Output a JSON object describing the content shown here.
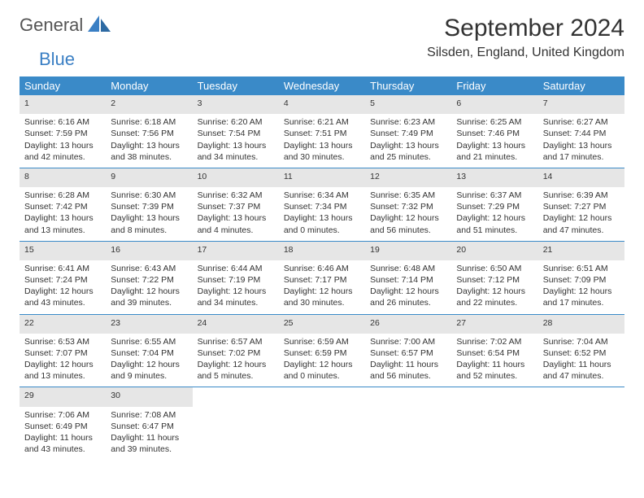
{
  "brand": {
    "part1": "General",
    "part2": "Blue"
  },
  "title": "September 2024",
  "location": "Silsden, England, United Kingdom",
  "colors": {
    "header_bg": "#3a8ac8",
    "header_text": "#ffffff",
    "daynum_bg": "#e6e6e6",
    "divider": "#3a8ac8",
    "brand_blue": "#3a7fc4",
    "text": "#333333"
  },
  "daysOfWeek": [
    "Sunday",
    "Monday",
    "Tuesday",
    "Wednesday",
    "Thursday",
    "Friday",
    "Saturday"
  ],
  "calendar": {
    "type": "table",
    "columns": 7,
    "rows": 5,
    "cell_fontsize": 10.5,
    "header_fontsize": 13
  },
  "cells": [
    {
      "day": "1",
      "sunrise": "Sunrise: 6:16 AM",
      "sunset": "Sunset: 7:59 PM",
      "daylight": "Daylight: 13 hours and 42 minutes."
    },
    {
      "day": "2",
      "sunrise": "Sunrise: 6:18 AM",
      "sunset": "Sunset: 7:56 PM",
      "daylight": "Daylight: 13 hours and 38 minutes."
    },
    {
      "day": "3",
      "sunrise": "Sunrise: 6:20 AM",
      "sunset": "Sunset: 7:54 PM",
      "daylight": "Daylight: 13 hours and 34 minutes."
    },
    {
      "day": "4",
      "sunrise": "Sunrise: 6:21 AM",
      "sunset": "Sunset: 7:51 PM",
      "daylight": "Daylight: 13 hours and 30 minutes."
    },
    {
      "day": "5",
      "sunrise": "Sunrise: 6:23 AM",
      "sunset": "Sunset: 7:49 PM",
      "daylight": "Daylight: 13 hours and 25 minutes."
    },
    {
      "day": "6",
      "sunrise": "Sunrise: 6:25 AM",
      "sunset": "Sunset: 7:46 PM",
      "daylight": "Daylight: 13 hours and 21 minutes."
    },
    {
      "day": "7",
      "sunrise": "Sunrise: 6:27 AM",
      "sunset": "Sunset: 7:44 PM",
      "daylight": "Daylight: 13 hours and 17 minutes."
    },
    {
      "day": "8",
      "sunrise": "Sunrise: 6:28 AM",
      "sunset": "Sunset: 7:42 PM",
      "daylight": "Daylight: 13 hours and 13 minutes."
    },
    {
      "day": "9",
      "sunrise": "Sunrise: 6:30 AM",
      "sunset": "Sunset: 7:39 PM",
      "daylight": "Daylight: 13 hours and 8 minutes."
    },
    {
      "day": "10",
      "sunrise": "Sunrise: 6:32 AM",
      "sunset": "Sunset: 7:37 PM",
      "daylight": "Daylight: 13 hours and 4 minutes."
    },
    {
      "day": "11",
      "sunrise": "Sunrise: 6:34 AM",
      "sunset": "Sunset: 7:34 PM",
      "daylight": "Daylight: 13 hours and 0 minutes."
    },
    {
      "day": "12",
      "sunrise": "Sunrise: 6:35 AM",
      "sunset": "Sunset: 7:32 PM",
      "daylight": "Daylight: 12 hours and 56 minutes."
    },
    {
      "day": "13",
      "sunrise": "Sunrise: 6:37 AM",
      "sunset": "Sunset: 7:29 PM",
      "daylight": "Daylight: 12 hours and 51 minutes."
    },
    {
      "day": "14",
      "sunrise": "Sunrise: 6:39 AM",
      "sunset": "Sunset: 7:27 PM",
      "daylight": "Daylight: 12 hours and 47 minutes."
    },
    {
      "day": "15",
      "sunrise": "Sunrise: 6:41 AM",
      "sunset": "Sunset: 7:24 PM",
      "daylight": "Daylight: 12 hours and 43 minutes."
    },
    {
      "day": "16",
      "sunrise": "Sunrise: 6:43 AM",
      "sunset": "Sunset: 7:22 PM",
      "daylight": "Daylight: 12 hours and 39 minutes."
    },
    {
      "day": "17",
      "sunrise": "Sunrise: 6:44 AM",
      "sunset": "Sunset: 7:19 PM",
      "daylight": "Daylight: 12 hours and 34 minutes."
    },
    {
      "day": "18",
      "sunrise": "Sunrise: 6:46 AM",
      "sunset": "Sunset: 7:17 PM",
      "daylight": "Daylight: 12 hours and 30 minutes."
    },
    {
      "day": "19",
      "sunrise": "Sunrise: 6:48 AM",
      "sunset": "Sunset: 7:14 PM",
      "daylight": "Daylight: 12 hours and 26 minutes."
    },
    {
      "day": "20",
      "sunrise": "Sunrise: 6:50 AM",
      "sunset": "Sunset: 7:12 PM",
      "daylight": "Daylight: 12 hours and 22 minutes."
    },
    {
      "day": "21",
      "sunrise": "Sunrise: 6:51 AM",
      "sunset": "Sunset: 7:09 PM",
      "daylight": "Daylight: 12 hours and 17 minutes."
    },
    {
      "day": "22",
      "sunrise": "Sunrise: 6:53 AM",
      "sunset": "Sunset: 7:07 PM",
      "daylight": "Daylight: 12 hours and 13 minutes."
    },
    {
      "day": "23",
      "sunrise": "Sunrise: 6:55 AM",
      "sunset": "Sunset: 7:04 PM",
      "daylight": "Daylight: 12 hours and 9 minutes."
    },
    {
      "day": "24",
      "sunrise": "Sunrise: 6:57 AM",
      "sunset": "Sunset: 7:02 PM",
      "daylight": "Daylight: 12 hours and 5 minutes."
    },
    {
      "day": "25",
      "sunrise": "Sunrise: 6:59 AM",
      "sunset": "Sunset: 6:59 PM",
      "daylight": "Daylight: 12 hours and 0 minutes."
    },
    {
      "day": "26",
      "sunrise": "Sunrise: 7:00 AM",
      "sunset": "Sunset: 6:57 PM",
      "daylight": "Daylight: 11 hours and 56 minutes."
    },
    {
      "day": "27",
      "sunrise": "Sunrise: 7:02 AM",
      "sunset": "Sunset: 6:54 PM",
      "daylight": "Daylight: 11 hours and 52 minutes."
    },
    {
      "day": "28",
      "sunrise": "Sunrise: 7:04 AM",
      "sunset": "Sunset: 6:52 PM",
      "daylight": "Daylight: 11 hours and 47 minutes."
    },
    {
      "day": "29",
      "sunrise": "Sunrise: 7:06 AM",
      "sunset": "Sunset: 6:49 PM",
      "daylight": "Daylight: 11 hours and 43 minutes."
    },
    {
      "day": "30",
      "sunrise": "Sunrise: 7:08 AM",
      "sunset": "Sunset: 6:47 PM",
      "daylight": "Daylight: 11 hours and 39 minutes."
    }
  ]
}
